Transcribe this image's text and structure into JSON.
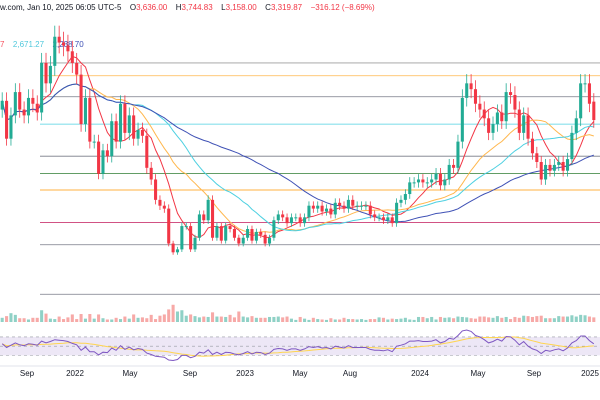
{
  "header": {
    "source_fragment": "w.com, Jan 10, 2025 06:05 UTC-5",
    "open_label": "O",
    "open_value": "3,636.00",
    "high_label": "H",
    "high_value": "3,744.83",
    "low_label": "L",
    "low_value": "3,158.00",
    "close_label": "C",
    "close_value": "3,319.87",
    "change_value": "−316.12 (−8.69%)"
  },
  "indicators": {
    "ma_first_fragment": "7",
    "ma_second": "2,671.27",
    "ma_third": "2,238.70"
  },
  "colors": {
    "up": "#22ab94",
    "down": "#f23645",
    "vol_up": "#8fd1c6",
    "vol_down": "#f7a9a7",
    "ma_fast": "#f23645",
    "ma_mid": "#ffb74d",
    "ma_slow": "#4dd0e1",
    "ma_long": "#3f51b5",
    "rsi_line": "#7e57c2",
    "rsi_ma": "#ffd54f",
    "rsi_band": "#ede7f6"
  },
  "chart_data": {
    "type": "candlestick",
    "timeframe": "weekly",
    "x_tick_labels": [
      "Sep",
      "2022",
      "May",
      "Sep",
      "2023",
      "May",
      "Aug",
      "2024",
      "May",
      "Sep",
      "2025"
    ],
    "horizontal_levels": [
      4300,
      4080,
      3720,
      3250,
      2700,
      2400,
      2120,
      1560,
      1180,
      330
    ],
    "candles_close": [
      3650,
      3000,
      3400,
      3800,
      3500,
      3400,
      3700,
      3600,
      3450,
      4300,
      3950,
      4250,
      4750,
      4650,
      4600,
      4500,
      4300,
      4100,
      3250,
      3700,
      2950,
      2950,
      2400,
      2800,
      2700,
      3300,
      2950,
      3600,
      3100,
      3400,
      3000,
      3150,
      3050,
      2500,
      2300,
      1950,
      1850,
      1800,
      1200,
      1050,
      1100,
      1500,
      1500,
      1100,
      1300,
      1700,
      1600,
      1950,
      1300,
      1500,
      1250,
      1500,
      1450,
      1300,
      1200,
      1300,
      1450,
      1250,
      1400,
      1350,
      1200,
      1300,
      1600,
      1700,
      1650,
      1550,
      1650,
      1650,
      1550,
      1650,
      1850,
      1800,
      1850,
      1750,
      1800,
      1700,
      1900,
      1850,
      1800,
      1950,
      1850,
      1850,
      1850,
      1850,
      1700,
      1650,
      1650,
      1600,
      1650,
      1550,
      1900,
      1950,
      2050,
      2250,
      2250,
      2300,
      2250,
      2250,
      2300,
      2400,
      2200,
      2300,
      2550,
      2500,
      2950,
      3700,
      3950,
      3850,
      3600,
      3500,
      3350,
      3100,
      3250,
      3450,
      3300,
      3800,
      3750,
      3500,
      3100,
      3400,
      3000,
      2750,
      2600,
      2300,
      2550,
      2450,
      2550,
      2600,
      2450,
      2650,
      3100,
      3350,
      3950,
      3950,
      3600,
      3320
    ],
    "candles_open": [
      3500,
      3650,
      3000,
      3400,
      3800,
      3500,
      3400,
      3700,
      3600,
      3450,
      4300,
      3950,
      4250,
      4750,
      4650,
      4600,
      4500,
      4300,
      4100,
      3250,
      3700,
      2950,
      2950,
      2400,
      2800,
      2700,
      3300,
      2950,
      3600,
      3100,
      3400,
      3000,
      3150,
      3050,
      2500,
      2300,
      1950,
      1850,
      1800,
      1200,
      1050,
      1100,
      1500,
      1500,
      1100,
      1300,
      1700,
      1600,
      1950,
      1300,
      1500,
      1250,
      1500,
      1450,
      1300,
      1200,
      1300,
      1450,
      1250,
      1400,
      1350,
      1200,
      1300,
      1600,
      1700,
      1650,
      1550,
      1650,
      1650,
      1550,
      1650,
      1850,
      1800,
      1850,
      1750,
      1800,
      1700,
      1900,
      1850,
      1800,
      1950,
      1850,
      1850,
      1850,
      1850,
      1700,
      1650,
      1650,
      1600,
      1650,
      1550,
      1900,
      1950,
      2050,
      2250,
      2250,
      2300,
      2250,
      2250,
      2300,
      2400,
      2200,
      2300,
      2550,
      2500,
      2950,
      3700,
      3950,
      3850,
      3600,
      3500,
      3350,
      3100,
      3250,
      3450,
      3300,
      3800,
      3750,
      3500,
      3100,
      3400,
      3000,
      2750,
      2600,
      2300,
      2550,
      2450,
      2550,
      2600,
      2450,
      2650,
      3100,
      3350,
      3950,
      3950,
      3636
    ],
    "ylim": [
      300,
      4900
    ],
    "volume_ylim": [
      0,
      100
    ],
    "volume": [
      10,
      14,
      21,
      17,
      9,
      9,
      6,
      10,
      10,
      28,
      20,
      8,
      7,
      13,
      7,
      11,
      18,
      7,
      19,
      8,
      19,
      8,
      18,
      9,
      6,
      6,
      10,
      7,
      13,
      8,
      18,
      10,
      11,
      9,
      17,
      7,
      15,
      18,
      30,
      41,
      25,
      28,
      15,
      18,
      14,
      11,
      13,
      12,
      23,
      13,
      13,
      12,
      17,
      11,
      25,
      13,
      11,
      14,
      10,
      10,
      10,
      12,
      12,
      13,
      11,
      13,
      8,
      5,
      12,
      8,
      5,
      10,
      7,
      6,
      5,
      9,
      6,
      6,
      10,
      7,
      7,
      6,
      7,
      5,
      7,
      7,
      11,
      10,
      6,
      8,
      7,
      8,
      10,
      6,
      5,
      12,
      12,
      9,
      12,
      6,
      12,
      10,
      11,
      9,
      13,
      12,
      11,
      9,
      8,
      13,
      13,
      11,
      10,
      14,
      10,
      12,
      7,
      12,
      10,
      15,
      14,
      12,
      14,
      15,
      9,
      9,
      9,
      14,
      13,
      13,
      16,
      13,
      17,
      16,
      13,
      11
    ],
    "rsi_ylim": [
      20,
      85
    ],
    "rsi": [
      55,
      47,
      52,
      57,
      53,
      51,
      55,
      54,
      52,
      61,
      57,
      60,
      64,
      63,
      62,
      60,
      56,
      53,
      41,
      48,
      38,
      38,
      31,
      37,
      36,
      46,
      41,
      51,
      43,
      48,
      42,
      45,
      43,
      35,
      32,
      28,
      27,
      26,
      20,
      19,
      21,
      30,
      30,
      25,
      28,
      37,
      35,
      42,
      32,
      37,
      32,
      37,
      36,
      33,
      31,
      34,
      38,
      33,
      37,
      36,
      32,
      35,
      43,
      45,
      44,
      41,
      44,
      44,
      41,
      44,
      49,
      47,
      49,
      46,
      47,
      44,
      50,
      48,
      46,
      51,
      47,
      47,
      47,
      47,
      43,
      41,
      41,
      40,
      42,
      38,
      50,
      52,
      55,
      61,
      61,
      62,
      60,
      60,
      61,
      64,
      57,
      60,
      67,
      65,
      73,
      83,
      85,
      82,
      73,
      70,
      64,
      57,
      60,
      65,
      61,
      71,
      70,
      63,
      53,
      60,
      50,
      44,
      41,
      34,
      41,
      39,
      42,
      44,
      40,
      46,
      57,
      62,
      72,
      72,
      62,
      55
    ]
  }
}
